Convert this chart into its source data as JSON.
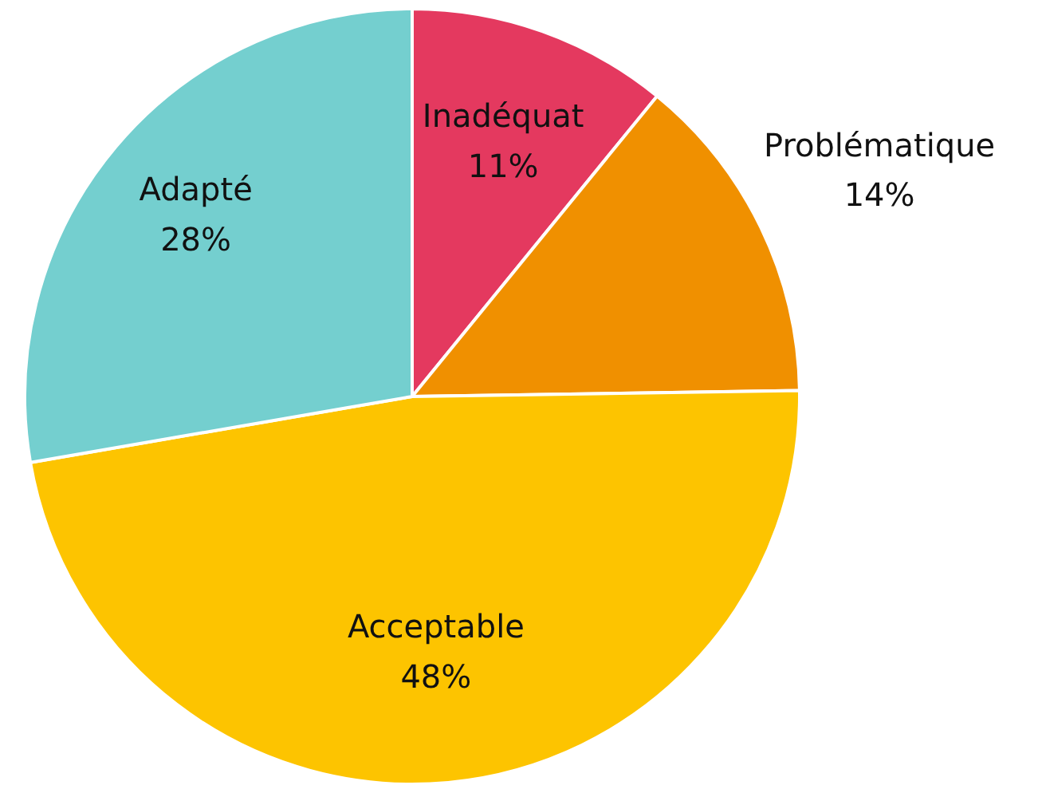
{
  "chart_data": {
    "type": "pie",
    "categories": [
      "Inadéquat",
      "Problématique",
      "Acceptable",
      "Adapté"
    ],
    "values": [
      11,
      14,
      48,
      28
    ],
    "colors": [
      "#e4395f",
      "#f09000",
      "#fdc400",
      "#74cfcf"
    ],
    "value_labels": [
      "11%",
      "14%",
      "48%",
      "28%"
    ]
  }
}
